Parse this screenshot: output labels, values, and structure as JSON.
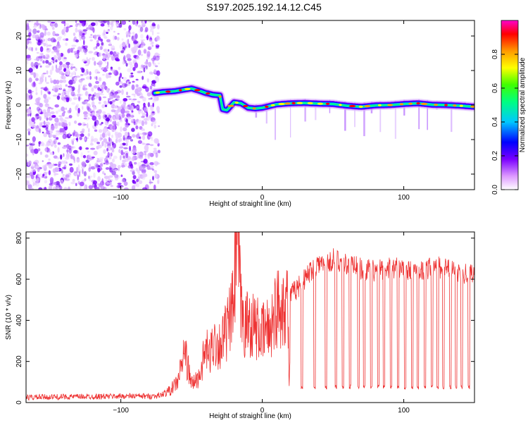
{
  "title": "S197.2025.192.14.12.C45",
  "chart_data": [
    {
      "type": "heatmap",
      "xlabel": "Height of straight line (km)",
      "ylabel": "Frequency (Hz)",
      "xlim": [
        -167,
        150
      ],
      "ylim": [
        -24.5,
        24.5
      ],
      "x_ticks": [
        -100,
        0,
        100
      ],
      "y_ticks": [
        -20,
        -10,
        0,
        10,
        20
      ],
      "grid": false,
      "colorbar": {
        "label": "Normalized spectral amplitude",
        "range": [
          0,
          1
        ],
        "ticks": [
          0.0,
          0.2,
          0.4,
          0.6,
          0.8
        ]
      },
      "noise_region_x": [
        -167,
        -73
      ],
      "ridge": {
        "x": [
          -76,
          -70,
          -62,
          -55,
          -50,
          -45,
          -40,
          -35,
          -30,
          -28,
          -25,
          -20,
          -15,
          -10,
          -5,
          0,
          10,
          20,
          30,
          40,
          50,
          60,
          70,
          80,
          90,
          100,
          110,
          120,
          130,
          140,
          150
        ],
        "y": [
          3.5,
          3.8,
          4.0,
          4.5,
          4.8,
          4.2,
          3.5,
          3.0,
          2.8,
          -1.2,
          -1.5,
          0.8,
          0.5,
          -0.8,
          -1.0,
          -0.8,
          0.2,
          0.5,
          0.6,
          0.4,
          0.3,
          -0.2,
          -0.5,
          -0.1,
          0.0,
          0.3,
          0.5,
          0.1,
          0.0,
          -0.2,
          -0.5
        ]
      }
    },
    {
      "type": "line",
      "xlabel": "Height of straight line (km)",
      "ylabel": "SNR (10 * v/v)",
      "xlim": [
        -167,
        150
      ],
      "ylim": [
        0,
        830
      ],
      "x_ticks": [
        -100,
        0,
        100
      ],
      "y_ticks": [
        0,
        200,
        400,
        600,
        800
      ],
      "grid": false,
      "color": "#ee3333",
      "x": [
        -167,
        -140,
        -110,
        -90,
        -80,
        -72,
        -65,
        -60,
        -57,
        -55,
        -52,
        -50,
        -45,
        -42,
        -40,
        -37,
        -35,
        -30,
        -25,
        -22,
        -20,
        -18,
        -15,
        -12,
        -10,
        -5,
        0,
        3,
        5,
        8,
        10,
        12,
        15,
        18,
        19,
        20,
        25,
        30,
        35,
        40,
        45,
        50,
        55,
        60,
        65,
        70,
        80,
        90,
        100,
        110,
        120,
        130,
        140,
        150
      ],
      "y": [
        25,
        28,
        30,
        32,
        30,
        35,
        60,
        100,
        180,
        260,
        150,
        90,
        120,
        200,
        260,
        220,
        300,
        280,
        350,
        420,
        500,
        820,
        450,
        360,
        400,
        370,
        330,
        360,
        350,
        430,
        450,
        470,
        490,
        510,
        60,
        520,
        560,
        600,
        650,
        680,
        660,
        700,
        690,
        670,
        680,
        650,
        640,
        660,
        650,
        640,
        660,
        650,
        630,
        640
      ],
      "dropouts": {
        "level": 75,
        "x": [
          28,
          37,
          45,
          52,
          57,
          62,
          68,
          72,
          77,
          82,
          86,
          91,
          96,
          101,
          106,
          110,
          115,
          120,
          124,
          128,
          133,
          137,
          141,
          146
        ]
      }
    }
  ]
}
